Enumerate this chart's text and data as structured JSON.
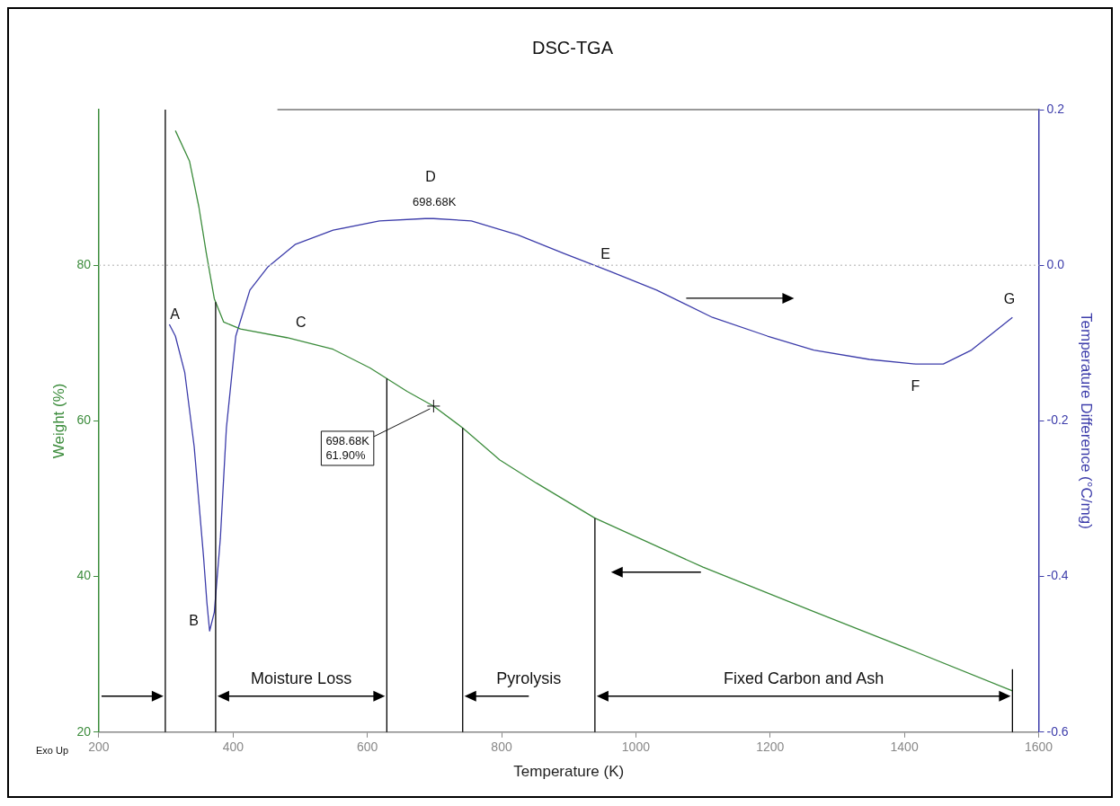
{
  "chart_data": {
    "type": "line",
    "title": "DSC-TGA",
    "xlabel": "Temperature (K)",
    "ylabel": "Weight (%)",
    "y2label": "Temperature Difference (°C/mg)",
    "xlim": [
      200,
      1600
    ],
    "xticks": [
      200,
      400,
      600,
      800,
      1000,
      1200,
      1400,
      1600
    ],
    "ylim": [
      20,
      100
    ],
    "yticks": [
      20,
      40,
      60,
      80
    ],
    "y2lim": [
      -0.6,
      0.2
    ],
    "y2ticks": [
      -0.6,
      -0.4,
      -0.2,
      {
        "value": 0,
        "label": "0.0"
      },
      0.2
    ],
    "grid": false,
    "legend": false,
    "marker": "none",
    "line_style": "solid",
    "series": [
      {
        "color": "#3c8c3c",
        "x": [
          314,
          335,
          349,
          360,
          372,
          386,
          411,
          480,
          549,
          604,
          659,
          698.68,
          742,
          797,
          852,
          939,
          1100,
          1265,
          1403,
          1561
        ],
        "values": [
          97.3,
          93.4,
          87.5,
          81.6,
          75.7,
          72.7,
          71.8,
          70.7,
          69.2,
          66.8,
          63.8,
          61.9,
          59.1,
          55,
          52,
          47.5,
          41.2,
          35.5,
          30.8,
          25.3
        ]
      },
      {
        "color": "#3c3caa",
        "axis": "y2",
        "x": [
          305,
          314,
          328,
          342,
          356,
          361,
          365,
          372,
          381,
          390,
          404,
          425,
          452,
          493,
          549,
          618,
          686,
          698.68,
          755,
          824,
          893,
          962,
          1031,
          1114,
          1196,
          1265,
          1348,
          1417,
          1458,
          1500,
          1561
        ],
        "values": [
          -0.076,
          -0.091,
          -0.138,
          -0.233,
          -0.375,
          -0.434,
          -0.47,
          -0.446,
          -0.351,
          -0.209,
          -0.091,
          -0.032,
          -0.002,
          0.027,
          0.045,
          0.057,
          0.06,
          0.06,
          0.057,
          0.039,
          0.015,
          -0.008,
          -0.032,
          -0.067,
          -0.091,
          -0.109,
          -0.121,
          -0.127,
          -0.127,
          -0.109,
          -0.067
        ]
      }
    ],
    "ref_lines": [
      {
        "axis": "y2",
        "value": 0,
        "color": "#c8c8c8",
        "line_style": "dotted"
      },
      {
        "axis": "x",
        "value": 299,
        "color": "#000000",
        "line_style": "solid"
      },
      {
        "axis": "x",
        "value": 374,
        "color": "#000000",
        "line_style": "solid"
      },
      {
        "axis": "x",
        "value": 629,
        "color": "#000000",
        "line_style": "solid"
      },
      {
        "axis": "x",
        "value": 742,
        "color": "#000000",
        "line_style": "solid"
      },
      {
        "axis": "x",
        "value": 939,
        "color": "#000000",
        "line_style": "solid"
      },
      {
        "axis": "x",
        "value": 1561,
        "color": "#000000",
        "line_style": "solid"
      }
    ],
    "annotations": [
      "A",
      "B",
      "C",
      "D",
      "698.68K",
      "E",
      "F",
      "G",
      {
        "text": "698.68K\n61.90%",
        "x": 698.68,
        "y": 61.9
      },
      "Exo Up",
      "Moisture Loss",
      "Pyrolysis",
      "Fixed Carbon and Ash"
    ]
  }
}
